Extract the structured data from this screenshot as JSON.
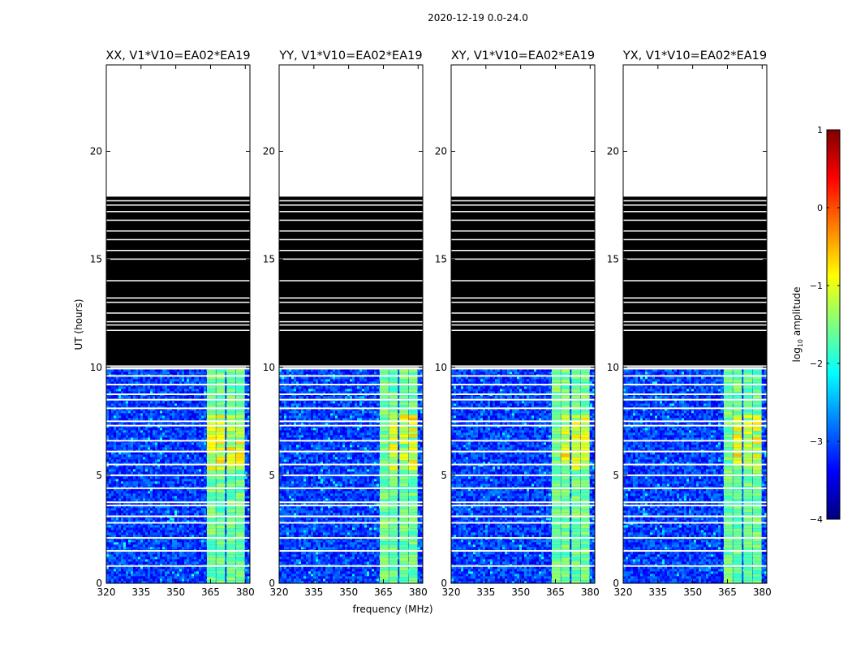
{
  "chart_data": {
    "type": "heatmap",
    "title": "2020-12-19 0.0-24.0",
    "xlabel": "frequency (MHz)",
    "ylabel": "UT (hours)",
    "xlim": [
      320,
      382
    ],
    "ylim": [
      0,
      24
    ],
    "xticks": [
      320,
      335,
      350,
      365,
      380
    ],
    "yticks": [
      0,
      5,
      10,
      15,
      20
    ],
    "colorbar": {
      "label": "log",
      "label_sub": "10",
      "label_rest": " amplitude",
      "min": -4,
      "max": 1,
      "ticks": [
        1,
        0,
        -1,
        -2,
        -3,
        -4
      ],
      "colormap": [
        "#00007f",
        "#0000ff",
        "#007fff",
        "#00ffff",
        "#7fff7f",
        "#ffff00",
        "#ff7f00",
        "#ff0000",
        "#7f0000"
      ]
    },
    "panels": [
      {
        "title": "XX, V1*V10=EA02*EA19"
      },
      {
        "title": "YY, V1*V10=EA02*EA19"
      },
      {
        "title": "XY, V1*V10=EA02*EA19"
      },
      {
        "title": "YX, V1*V10=EA02*EA19"
      }
    ],
    "signal_band_mhz": [
      363.5,
      378.5
    ],
    "signal_columns_mhz": [
      365.5,
      369.5,
      374.0,
      378.0
    ],
    "data_ut_range": [
      0,
      9.9
    ],
    "flagged_ut_range": [
      9.9,
      17.9
    ],
    "empty_ut_range": [
      17.9,
      24
    ],
    "background_log_amplitude": -3.1,
    "band_log_amplitude": -1.6,
    "peak_log_amplitude": -0.5,
    "peak_ut_range": [
      5.3,
      7.8
    ]
  }
}
